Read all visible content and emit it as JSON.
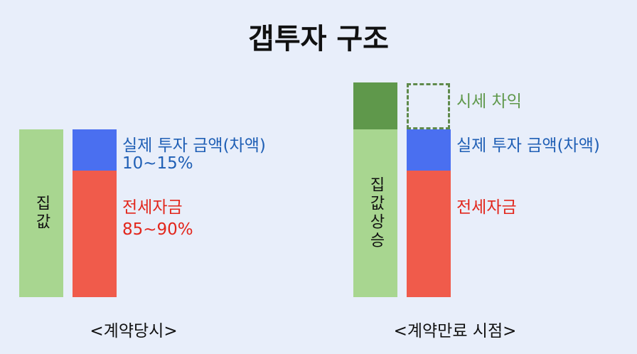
{
  "title": "갭투자 구조",
  "before": {
    "bar_label": "집값",
    "investment_label": "실제 투자 금액(차액)",
    "investment_ratio": "10~15%",
    "deposit_label": "전세자금",
    "deposit_ratio": "85~90%",
    "caption": "<계약당시>"
  },
  "after": {
    "bar_label": "집값상승",
    "gain_label": "시세 차익",
    "investment_label": "실제 투자 금액(차액)",
    "deposit_label": "전세자금",
    "caption": "<계약만료 시점>"
  }
}
